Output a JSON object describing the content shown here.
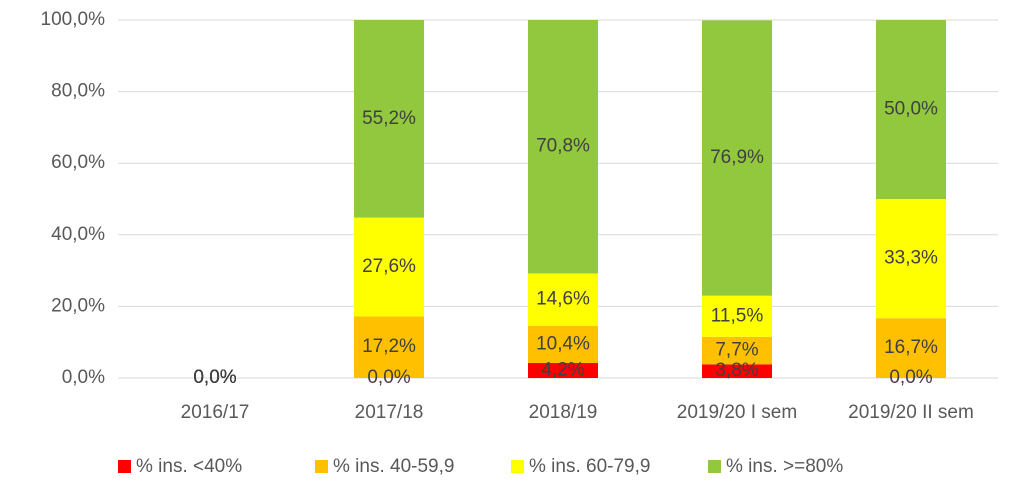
{
  "chart_data": {
    "type": "bar",
    "stacked": true,
    "categories": [
      "2016/17",
      "2017/18",
      "2018/19",
      "2019/20 I sem",
      "2019/20 II sem"
    ],
    "series": [
      {
        "name": "% ins. <40%",
        "color": "#ff0000",
        "values": [
          0,
          0,
          4.2,
          3.8,
          0
        ],
        "value_labels": [
          "0,0%",
          "0,0%",
          "4,2%",
          "3,8%",
          "0,0%"
        ]
      },
      {
        "name": "% ins. 40-59,9",
        "color": "#ffc000",
        "values": [
          0,
          17.2,
          10.4,
          7.7,
          16.7
        ],
        "value_labels": [
          "0,0%",
          "17,2%",
          "10,4%",
          "7,7%",
          "16,7%"
        ]
      },
      {
        "name": "% ins. 60-79,9",
        "color": "#ffff00",
        "values": [
          0,
          27.6,
          14.6,
          11.5,
          33.3
        ],
        "value_labels": [
          "0,0%",
          "27,6%",
          "14,6%",
          "11,5%",
          "33,3%"
        ]
      },
      {
        "name": "% ins. >=80%",
        "color": "#92c83e",
        "values": [
          0,
          55.2,
          70.8,
          76.9,
          50.0
        ],
        "value_labels": [
          "0,0%",
          "55,2%",
          "70,8%",
          "76,9%",
          "50,0%"
        ]
      }
    ],
    "ylim": [
      0,
      100
    ],
    "yticks": [
      {
        "value": 0,
        "label": "0,0%"
      },
      {
        "value": 20,
        "label": "20,0%"
      },
      {
        "value": 40,
        "label": "40,0%"
      },
      {
        "value": 60,
        "label": "60,0%"
      },
      {
        "value": 80,
        "label": "80,0%"
      },
      {
        "value": 100,
        "label": "100,0%"
      }
    ],
    "grid": true,
    "legend": "bottom"
  }
}
